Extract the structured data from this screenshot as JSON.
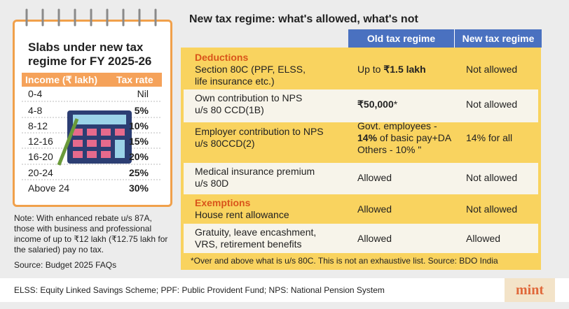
{
  "left_panel": {
    "title": [
      "Slabs under new tax",
      "regime for FY 2025-26"
    ],
    "table": {
      "header": [
        "Income (₹ lakh)",
        "Tax rate"
      ],
      "rows": [
        [
          "0-4",
          "Nil"
        ],
        [
          "4-8",
          "5%"
        ],
        [
          "8-12",
          "10%"
        ],
        [
          "12-16",
          "15%"
        ],
        [
          "16-20",
          "20%"
        ],
        [
          "20-24",
          "25%"
        ],
        [
          "Above 24",
          "30%"
        ]
      ]
    },
    "note": [
      "Note: With enhanced rebate u/s 87A,",
      "those with business and professional",
      "income of up to ₹12 lakh (₹12.75 lakh for",
      "the salaried) pay no tax."
    ],
    "source": "Source: Budget 2025 FAQs"
  },
  "right_panel": {
    "title": "New tax regime: what's allowed, what's not",
    "table": {
      "header": [
        "Old tax regime",
        "New tax regime"
      ],
      "rows": [
        {
          "section": "Deductions",
          "item": [
            "Section 80C (PPF, ELSS,",
            "life insurance etc.)"
          ],
          "old": [
            [
              "Up to ",
              "₹1.5 lakh"
            ]
          ],
          "new": "Not allowed"
        },
        {
          "item": [
            "Own contribution to NPS",
            "u/s 80 CCD(1B)"
          ],
          "old": [
            [
              "₹50,000",
              "*"
            ]
          ],
          "new": "Not allowed"
        },
        {
          "item": [
            "Employer contribution to NPS",
            "u/s 80CCD(2)"
          ],
          "old": [
            [
              "Govt. employees -"
            ],
            [
              "14%",
              " of basic pay+DA"
            ],
            [
              "Others - 10% \""
            ]
          ],
          "new": "14% for all"
        },
        {
          "item": [
            "Medical insurance premium",
            "u/s 80D"
          ],
          "old": [
            [
              "Allowed"
            ]
          ],
          "new": "Not allowed"
        },
        {
          "section": "Exemptions",
          "item": [
            "House rent allowance"
          ],
          "old": [
            [
              "Allowed"
            ]
          ],
          "new": "Not allowed"
        },
        {
          "item": [
            "Gratuity, leave encashment,",
            "VRS, retirement benefits"
          ],
          "old": [
            [
              "Allowed"
            ]
          ],
          "new": "Allowed"
        }
      ]
    },
    "footnote": "*Over and above what is u/s 80C. This is not an exhaustive list. Source: BDO India"
  },
  "footer": {
    "glossary": "ELSS: Equity Linked Savings Scheme; PPF: Public Provident Fund; NPS: National Pension System",
    "logo": "mint"
  }
}
